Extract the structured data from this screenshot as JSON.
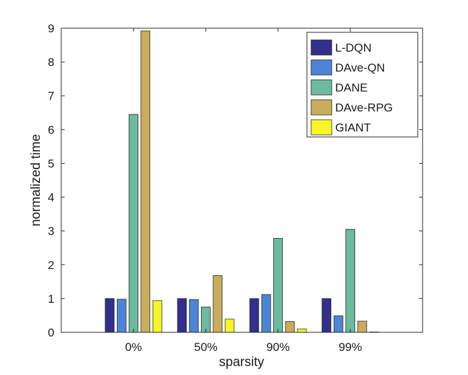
{
  "chart_data": {
    "type": "bar",
    "title": "",
    "xlabel": "sparsity",
    "ylabel": "normalized time",
    "categories": [
      "0%",
      "50%",
      "90%",
      "99%"
    ],
    "ylim": [
      0,
      9
    ],
    "yticks": [
      "0",
      "1",
      "2",
      "3",
      "4",
      "5",
      "6",
      "7",
      "8",
      "9"
    ],
    "grid": false,
    "legend_position": "top-right",
    "series": [
      {
        "name": "L-DQN",
        "color": "#332f8c",
        "values": [
          1.0,
          1.0,
          1.0,
          1.0
        ]
      },
      {
        "name": "DAve-QN",
        "color": "#4c85d6",
        "values": [
          0.98,
          0.97,
          1.12,
          0.49
        ]
      },
      {
        "name": "DANE",
        "color": "#6cbaa0",
        "values": [
          6.45,
          0.75,
          2.78,
          3.05
        ]
      },
      {
        "name": "DAve-RPG",
        "color": "#c9ac5c",
        "values": [
          8.92,
          1.68,
          0.32,
          0.33
        ]
      },
      {
        "name": "GIANT",
        "color": "#f6f528",
        "values": [
          0.94,
          0.39,
          0.1,
          0.01
        ]
      }
    ]
  }
}
